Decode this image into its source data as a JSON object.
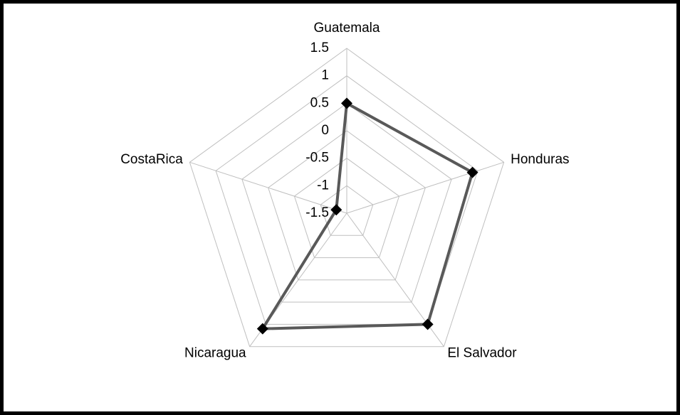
{
  "chart_data": {
    "type": "radar",
    "categories": [
      "Guatemala",
      "Honduras",
      "El Salvador",
      "Nicaragua",
      "CostaRica"
    ],
    "series": [
      {
        "color": "#595959",
        "values": [
          0.5,
          0.9,
          1.0,
          1.1,
          -1.3
        ]
      }
    ],
    "ylim": [
      -1.5,
      1.5
    ],
    "yticks": [
      -1.5,
      -1,
      -0.5,
      0,
      0.5,
      1,
      1.5
    ],
    "grid": true
  }
}
